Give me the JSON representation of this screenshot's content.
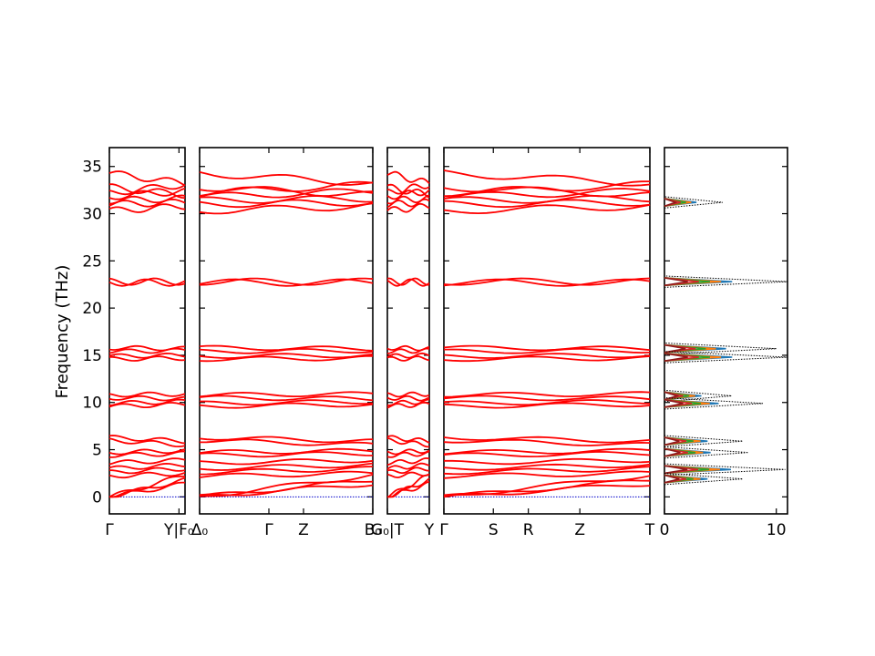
{
  "chart_data": {
    "type": "line",
    "ylabel": "Frequency (THz)",
    "ylim": [
      -1.8,
      37
    ],
    "yticks": [
      0,
      5,
      10,
      15,
      20,
      25,
      30,
      35
    ],
    "band_color": "#ff0000",
    "zero_line_color": "#0000cc",
    "panels": [
      {
        "id": "p1",
        "xticks": [
          "Γ",
          "Y|F₀"
        ],
        "tick_pos": [
          0,
          0.92
        ]
      },
      {
        "id": "p2",
        "xticks": [
          "Δ₀",
          "Γ",
          "Z",
          "B₀"
        ],
        "tick_pos": [
          0,
          0.4,
          0.6,
          1.0
        ]
      },
      {
        "id": "p3",
        "xticks": [
          "G₀|T",
          "Y"
        ],
        "tick_pos": [
          0,
          1.0
        ]
      },
      {
        "id": "p4",
        "xticks": [
          "Γ",
          "S",
          "R",
          "Z",
          "T"
        ],
        "tick_pos": [
          0,
          0.24,
          0.41,
          0.66,
          1.0
        ]
      }
    ],
    "bands": [
      {
        "name": "b1",
        "values": [
          34.3,
          33.2
        ]
      },
      {
        "name": "b2",
        "values": [
          32.8,
          32.0
        ]
      },
      {
        "name": "b3",
        "values": [
          32.2,
          33.1
        ]
      },
      {
        "name": "b4",
        "values": [
          31.8,
          32.4
        ]
      },
      {
        "name": "b5",
        "values": [
          31.4,
          31.6
        ]
      },
      {
        "name": "b6",
        "values": [
          31.0,
          31.2
        ]
      },
      {
        "name": "b7",
        "values": [
          30.3,
          30.8
        ]
      },
      {
        "name": "b8",
        "values": [
          22.8,
          22.8
        ]
      },
      {
        "name": "b9",
        "values": [
          22.7,
          22.7
        ]
      },
      {
        "name": "b10",
        "values": [
          15.8,
          15.7
        ]
      },
      {
        "name": "b11",
        "values": [
          15.4,
          15.5
        ]
      },
      {
        "name": "b12",
        "values": [
          14.9,
          15.0
        ]
      },
      {
        "name": "b13",
        "values": [
          14.6,
          14.7
        ]
      },
      {
        "name": "b14",
        "values": [
          10.8,
          10.9
        ]
      },
      {
        "name": "b15",
        "values": [
          10.5,
          10.4
        ]
      },
      {
        "name": "b16",
        "values": [
          9.9,
          10.1
        ]
      },
      {
        "name": "b17",
        "values": [
          9.6,
          9.8
        ]
      },
      {
        "name": "b18",
        "values": [
          6.3,
          5.9
        ]
      },
      {
        "name": "b19",
        "values": [
          6.0,
          5.5
        ]
      },
      {
        "name": "b20",
        "values": [
          4.7,
          4.9
        ]
      },
      {
        "name": "b21",
        "values": [
          4.4,
          4.6
        ]
      },
      {
        "name": "b22",
        "values": [
          3.6,
          3.9
        ]
      },
      {
        "name": "b23",
        "values": [
          3.0,
          3.4
        ]
      },
      {
        "name": "b24",
        "values": [
          2.6,
          3.0
        ]
      },
      {
        "name": "b25",
        "values": [
          2.2,
          2.5
        ]
      },
      {
        "name": "b26",
        "values": [
          0.0,
          1.8
        ]
      },
      {
        "name": "b27",
        "values": [
          0.0,
          1.4
        ]
      },
      {
        "name": "b28",
        "values": [
          0.0,
          2.3
        ]
      }
    ],
    "dos": {
      "xticks": [
        "0",
        "10"
      ],
      "xlim": [
        0,
        11
      ],
      "total_color": "#000000",
      "partial_colors": [
        "#1f77b4",
        "#ff7f0e",
        "#2ca02c",
        "#d62728",
        "#8c1a1a"
      ],
      "peaks": [
        {
          "freq": 31.2,
          "height": 5.2
        },
        {
          "freq": 22.8,
          "height": 11.0
        },
        {
          "freq": 15.7,
          "height": 10.0
        },
        {
          "freq": 14.8,
          "height": 11.0
        },
        {
          "freq": 10.7,
          "height": 6.0
        },
        {
          "freq": 9.9,
          "height": 8.8
        },
        {
          "freq": 5.9,
          "height": 7.0
        },
        {
          "freq": 4.7,
          "height": 7.5
        },
        {
          "freq": 2.9,
          "height": 10.8
        },
        {
          "freq": 1.9,
          "height": 7.0
        }
      ]
    }
  }
}
